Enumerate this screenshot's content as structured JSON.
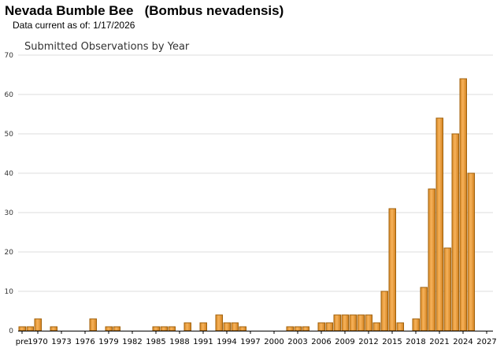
{
  "header": {
    "title": "Nevada Bumble Bee   (Bombus nevadensis)",
    "data_current_label": "Data current as of:",
    "data_current_date": "1/17/2026"
  },
  "chart_data": {
    "type": "bar",
    "title": "Submitted Observations by Year",
    "xlabel": "",
    "ylabel": "",
    "ylim": [
      0,
      70
    ],
    "yticks": [
      0,
      10,
      20,
      30,
      40,
      50,
      60,
      70
    ],
    "grid": true,
    "legend": "none",
    "bar_color": "#f0a23c",
    "bar_edge_color": "#a0620c",
    "categories": [
      "pre",
      "1969",
      "1970",
      "1971",
      "1972",
      "1973",
      "1974",
      "1975",
      "1976",
      "1977",
      "1978",
      "1979",
      "1980",
      "1981",
      "1982",
      "1983",
      "1984",
      "1985",
      "1986",
      "1987",
      "1988",
      "1989",
      "1990",
      "1991",
      "1992",
      "1993",
      "1994",
      "1995",
      "1996",
      "1997",
      "1998",
      "1999",
      "2000",
      "2001",
      "2002",
      "2003",
      "2004",
      "2005",
      "2006",
      "2007",
      "2008",
      "2009",
      "2010",
      "2011",
      "2012",
      "2013",
      "2014",
      "2015",
      "2016",
      "2017",
      "2018",
      "2019",
      "2020",
      "2021",
      "2022",
      "2023",
      "2024",
      "2025",
      "2026",
      "2027"
    ],
    "x_tick_labels": [
      "pre",
      "1970",
      "1973",
      "1976",
      "1979",
      "1982",
      "1985",
      "1988",
      "1991",
      "1994",
      "1997",
      "2000",
      "2003",
      "2006",
      "2009",
      "2012",
      "2015",
      "2018",
      "2021",
      "2024",
      "2027"
    ],
    "values": [
      1,
      1,
      3,
      0,
      1,
      0,
      0,
      0,
      0,
      3,
      0,
      1,
      1,
      0,
      0,
      0,
      0,
      1,
      1,
      1,
      0,
      2,
      0,
      2,
      0,
      4,
      2,
      2,
      1,
      0,
      0,
      0,
      0,
      0,
      1,
      1,
      1,
      0,
      2,
      2,
      4,
      4,
      4,
      4,
      4,
      2,
      10,
      31,
      2,
      0,
      3,
      11,
      36,
      54,
      21,
      50,
      64,
      40,
      0,
      0
    ]
  }
}
